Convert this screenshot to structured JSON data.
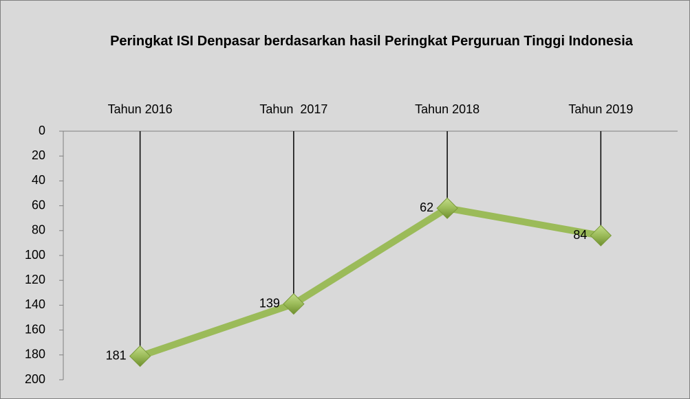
{
  "chart_data": {
    "type": "line",
    "title": "Peringkat ISI Denpasar berdasarkan hasil Peringkat Perguruan Tinggi Indonesia",
    "categories": [
      "Tahun 2016",
      "Tahun  2017",
      "Tahun 2018",
      "Tahun 2019"
    ],
    "values": [
      181,
      139,
      62,
      84
    ],
    "color": "#9bbb59",
    "ylim": [
      0,
      200
    ],
    "yticks": [
      0,
      20,
      40,
      60,
      80,
      100,
      120,
      140,
      160,
      180,
      200
    ],
    "y_reversed": true,
    "drop_lines": true,
    "data_labels": true
  }
}
